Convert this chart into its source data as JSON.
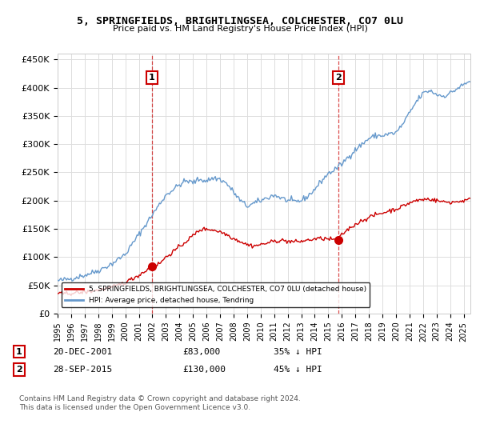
{
  "title": "5, SPRINGFIELDS, BRIGHTLINGSEA, COLCHESTER, CO7 0LU",
  "subtitle": "Price paid vs. HM Land Registry's House Price Index (HPI)",
  "legend_label_red": "5, SPRINGFIELDS, BRIGHTLINGSEA, COLCHESTER, CO7 0LU (detached house)",
  "legend_label_blue": "HPI: Average price, detached house, Tendring",
  "annotation1_date": "20-DEC-2001",
  "annotation1_price": "£83,000",
  "annotation1_hpi": "35% ↓ HPI",
  "annotation2_date": "28-SEP-2015",
  "annotation2_price": "£130,000",
  "annotation2_hpi": "45% ↓ HPI",
  "footer": "Contains HM Land Registry data © Crown copyright and database right 2024.\nThis data is licensed under the Open Government Licence v3.0.",
  "xmin": 1995.0,
  "xmax": 2025.5,
  "ymin": 0,
  "ymax": 460000,
  "yticks": [
    0,
    50000,
    100000,
    150000,
    200000,
    250000,
    300000,
    350000,
    400000,
    450000
  ],
  "ytick_labels": [
    "£0",
    "£50K",
    "£100K",
    "£150K",
    "£200K",
    "£250K",
    "£300K",
    "£350K",
    "£400K",
    "£450K"
  ],
  "red_color": "#cc0000",
  "blue_color": "#6699cc",
  "anno1_x": 2001.97,
  "anno2_x": 2015.75,
  "anno1_y": 83000,
  "anno2_y": 130000,
  "bg_color": "#ffffff",
  "grid_color": "#dddddd",
  "hpi_keypoints": [
    [
      1995.0,
      58000
    ],
    [
      1996.0,
      62000
    ],
    [
      1997.0,
      68000
    ],
    [
      1998.0,
      76000
    ],
    [
      1999.0,
      88000
    ],
    [
      2000.0,
      105000
    ],
    [
      2001.0,
      140000
    ],
    [
      2002.0,
      175000
    ],
    [
      2003.0,
      210000
    ],
    [
      2004.0,
      228000
    ],
    [
      2004.5,
      235000
    ],
    [
      2005.0,
      232000
    ],
    [
      2005.5,
      238000
    ],
    [
      2006.0,
      235000
    ],
    [
      2006.5,
      240000
    ],
    [
      2007.0,
      238000
    ],
    [
      2007.5,
      230000
    ],
    [
      2008.0,
      215000
    ],
    [
      2008.5,
      200000
    ],
    [
      2009.0,
      190000
    ],
    [
      2009.5,
      195000
    ],
    [
      2010.0,
      200000
    ],
    [
      2010.5,
      205000
    ],
    [
      2011.0,
      210000
    ],
    [
      2011.5,
      205000
    ],
    [
      2012.0,
      200000
    ],
    [
      2012.5,
      198000
    ],
    [
      2013.0,
      200000
    ],
    [
      2013.5,
      208000
    ],
    [
      2014.0,
      220000
    ],
    [
      2014.5,
      235000
    ],
    [
      2015.0,
      248000
    ],
    [
      2015.5,
      255000
    ],
    [
      2016.0,
      265000
    ],
    [
      2016.5,
      278000
    ],
    [
      2017.0,
      290000
    ],
    [
      2017.5,
      300000
    ],
    [
      2018.0,
      310000
    ],
    [
      2018.5,
      315000
    ],
    [
      2019.0,
      315000
    ],
    [
      2019.5,
      318000
    ],
    [
      2020.0,
      320000
    ],
    [
      2020.5,
      335000
    ],
    [
      2021.0,
      355000
    ],
    [
      2021.5,
      375000
    ],
    [
      2022.0,
      390000
    ],
    [
      2022.5,
      395000
    ],
    [
      2023.0,
      388000
    ],
    [
      2023.5,
      385000
    ],
    [
      2024.0,
      390000
    ],
    [
      2024.5,
      398000
    ],
    [
      2025.0,
      405000
    ],
    [
      2025.5,
      412000
    ]
  ],
  "red_keypoints": [
    [
      1995.0,
      35000
    ],
    [
      1996.0,
      36000
    ],
    [
      1997.0,
      38000
    ],
    [
      1998.0,
      42000
    ],
    [
      1999.0,
      46000
    ],
    [
      2000.0,
      55000
    ],
    [
      2001.0,
      68000
    ],
    [
      2001.97,
      83000
    ],
    [
      2002.5,
      88000
    ],
    [
      2003.0,
      100000
    ],
    [
      2004.0,
      118000
    ],
    [
      2005.0,
      138000
    ],
    [
      2005.5,
      148000
    ],
    [
      2006.0,
      150000
    ],
    [
      2006.5,
      148000
    ],
    [
      2007.0,
      145000
    ],
    [
      2007.5,
      140000
    ],
    [
      2008.0,
      133000
    ],
    [
      2008.5,
      128000
    ],
    [
      2009.0,
      122000
    ],
    [
      2009.5,
      120000
    ],
    [
      2010.0,
      122000
    ],
    [
      2010.5,
      125000
    ],
    [
      2011.0,
      128000
    ],
    [
      2011.5,
      130000
    ],
    [
      2012.0,
      128000
    ],
    [
      2012.5,
      127000
    ],
    [
      2013.0,
      128000
    ],
    [
      2013.5,
      130000
    ],
    [
      2014.0,
      132000
    ],
    [
      2014.5,
      133000
    ],
    [
      2015.0,
      132000
    ],
    [
      2015.75,
      130000
    ],
    [
      2016.0,
      140000
    ],
    [
      2016.5,
      150000
    ],
    [
      2017.0,
      158000
    ],
    [
      2017.5,
      165000
    ],
    [
      2018.0,
      170000
    ],
    [
      2018.5,
      175000
    ],
    [
      2019.0,
      178000
    ],
    [
      2019.5,
      182000
    ],
    [
      2020.0,
      185000
    ],
    [
      2020.5,
      190000
    ],
    [
      2021.0,
      196000
    ],
    [
      2021.5,
      200000
    ],
    [
      2022.0,
      202000
    ],
    [
      2022.5,
      203000
    ],
    [
      2023.0,
      200000
    ],
    [
      2023.5,
      198000
    ],
    [
      2024.0,
      197000
    ],
    [
      2024.5,
      198000
    ],
    [
      2025.0,
      200000
    ],
    [
      2025.5,
      202000
    ]
  ]
}
